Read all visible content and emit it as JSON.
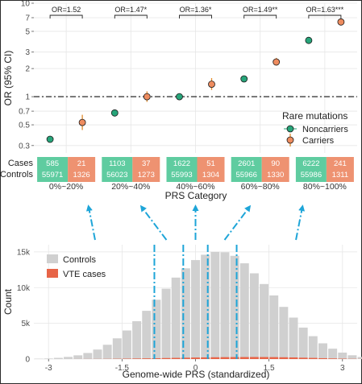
{
  "colors": {
    "noncarriers": "#27a57a",
    "carriers": "#ee8c5f",
    "carriers_ci": "#e08a2b",
    "cases_box": "#5fcca0",
    "carriers_box": "#ee9271",
    "controls_bar": "#d0d0d0",
    "vte_bar": "#e76447",
    "arrow": "#1ea5d8",
    "grid": "#e6e6e6",
    "axis_text": "#4d4d4d"
  },
  "chart_data": [
    {
      "type": "scatter",
      "title": "",
      "xlabel": "PRS Category",
      "ylabel": "OR (95% CI)",
      "y_scale": "log",
      "ylim": [
        0.25,
        10
      ],
      "yticks": [
        "0.3",
        "0.5",
        "0.7",
        "1",
        "2",
        "3",
        "5",
        "7",
        "10"
      ],
      "reference_line": 1,
      "categories": [
        "0%~20%",
        "20%~40%",
        "40%~60%",
        "60%~80%",
        "80%~100%"
      ],
      "series": [
        {
          "name": "Noncarriers",
          "values": [
            0.35,
            0.67,
            1.0,
            1.55,
            4.0
          ]
        },
        {
          "name": "Carriers",
          "values": [
            0.53,
            1.0,
            1.36,
            2.35,
            6.3
          ],
          "ci_low": [
            0.44,
            0.88,
            1.18,
            2.15,
            6.0
          ],
          "ci_high": [
            0.64,
            1.14,
            1.58,
            2.6,
            6.7
          ]
        }
      ],
      "legend_title": "Rare mutations",
      "legend_position": "right",
      "annotations": [
        "OR=1.52",
        "OR=1.47*",
        "OR=1.36*",
        "OR=1.49**",
        "OR=1.63***"
      ],
      "table": {
        "row_labels": [
          "Cases",
          "Controls"
        ],
        "noncarriers_cases": [
          "585",
          "1103",
          "1622",
          "2601",
          "6222"
        ],
        "noncarriers_controls": [
          "55971",
          "56023",
          "55993",
          "55966",
          "55986"
        ],
        "carriers_cases": [
          "21",
          "37",
          "51",
          "90",
          "241"
        ],
        "carriers_controls": [
          "1326",
          "1273",
          "1304",
          "1330",
          "1311"
        ]
      }
    },
    {
      "type": "bar",
      "title": "",
      "xlabel": "Genome-wide PRS (standardized)",
      "ylabel": "Count",
      "xlim": [
        -3.3,
        3.3
      ],
      "xticks": [
        "-3",
        "-1.5",
        "0",
        "1.5",
        "3"
      ],
      "ylim": [
        0,
        16000
      ],
      "yticks": [
        "0",
        "5k",
        "10k",
        "15k"
      ],
      "bin_width": 0.2,
      "bin_start": -3.3,
      "series": [
        {
          "name": "Controls",
          "values": [
            50,
            80,
            170,
            300,
            520,
            850,
            1330,
            2000,
            2900,
            4000,
            5300,
            6750,
            8300,
            9850,
            11400,
            12700,
            13850,
            14600,
            15000,
            14950,
            14450,
            13400,
            12000,
            10500,
            8900,
            7300,
            5800,
            4400,
            3200,
            2200,
            1450,
            900,
            530,
            290,
            150
          ]
        },
        {
          "name": "VTE cases",
          "values": [
            0,
            0,
            0,
            0,
            5,
            10,
            15,
            25,
            40,
            55,
            75,
            95,
            115,
            140,
            165,
            190,
            210,
            230,
            250,
            265,
            275,
            280,
            285,
            280,
            270,
            250,
            225,
            190,
            160,
            120,
            85,
            55,
            30,
            15,
            5
          ]
        }
      ],
      "legend_position": "top-left",
      "percentile_cutoffs": [
        -0.84,
        -0.25,
        0.25,
        0.84
      ]
    }
  ]
}
